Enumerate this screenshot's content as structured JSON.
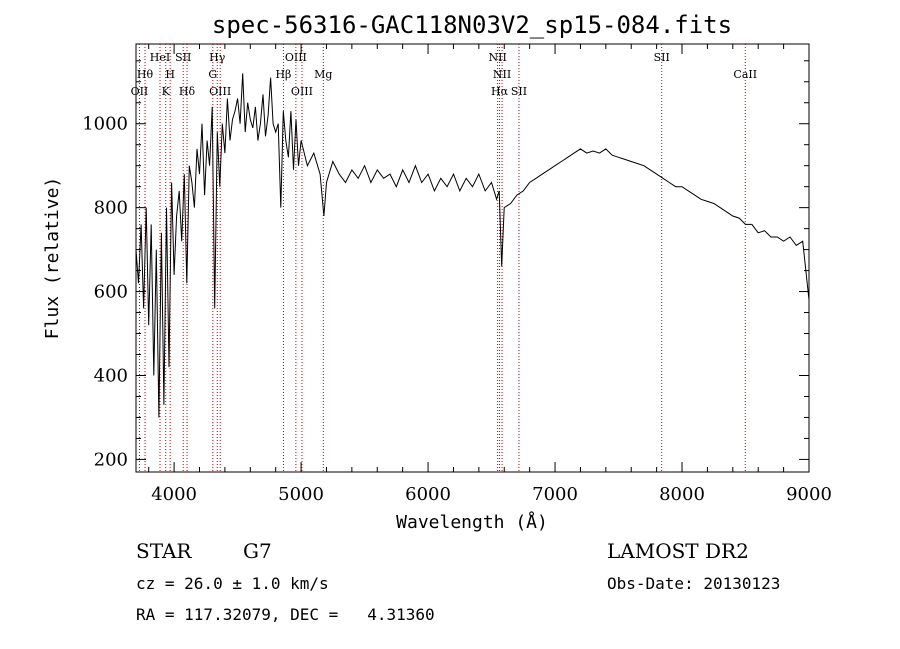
{
  "chart_data": {
    "type": "line",
    "title": "spec-56316-GAC118N03V2_sp15-084.fits",
    "xlabel": "Wavelength (Å)",
    "ylabel": "Flux (relative)",
    "xlim": [
      3700,
      9000
    ],
    "ylim": [
      170,
      1190
    ],
    "x_ticks": [
      4000,
      5000,
      6000,
      7000,
      8000,
      9000
    ],
    "x_tick_labels": [
      "4000",
      "5000",
      "6000",
      "7000",
      "8000",
      "9000"
    ],
    "y_ticks": [
      200,
      400,
      600,
      800,
      1000
    ],
    "y_tick_labels": [
      "200",
      "400",
      "600",
      "800",
      "1000"
    ],
    "series": [
      {
        "color": "#000000",
        "x": [
          3700,
          3720,
          3740,
          3760,
          3780,
          3800,
          3820,
          3840,
          3860,
          3880,
          3900,
          3920,
          3940,
          3960,
          3980,
          4000,
          4020,
          4040,
          4060,
          4080,
          4100,
          4120,
          4140,
          4160,
          4180,
          4200,
          4220,
          4240,
          4260,
          4280,
          4300,
          4320,
          4340,
          4360,
          4380,
          4400,
          4420,
          4440,
          4460,
          4480,
          4500,
          4520,
          4540,
          4560,
          4580,
          4600,
          4620,
          4640,
          4660,
          4680,
          4700,
          4720,
          4740,
          4760,
          4780,
          4800,
          4820,
          4840,
          4860,
          4880,
          4900,
          4920,
          4940,
          4960,
          4980,
          5000,
          5050,
          5100,
          5150,
          5180,
          5200,
          5250,
          5300,
          5350,
          5400,
          5450,
          5500,
          5550,
          5600,
          5650,
          5700,
          5750,
          5800,
          5850,
          5900,
          5950,
          6000,
          6050,
          6100,
          6150,
          6200,
          6250,
          6300,
          6350,
          6400,
          6450,
          6500,
          6540,
          6560,
          6580,
          6600,
          6650,
          6700,
          6750,
          6800,
          6850,
          6900,
          6950,
          7000,
          7050,
          7100,
          7150,
          7200,
          7250,
          7300,
          7350,
          7400,
          7450,
          7500,
          7550,
          7600,
          7650,
          7700,
          7750,
          7800,
          7850,
          7900,
          7950,
          8000,
          8050,
          8100,
          8150,
          8200,
          8250,
          8300,
          8350,
          8400,
          8450,
          8500,
          8550,
          8600,
          8650,
          8700,
          8750,
          8800,
          8850,
          8900,
          8950,
          9000
        ],
        "y": [
          700,
          620,
          760,
          560,
          800,
          520,
          760,
          400,
          700,
          300,
          740,
          330,
          800,
          420,
          860,
          640,
          780,
          840,
          720,
          880,
          620,
          900,
          860,
          800,
          940,
          880,
          1000,
          830,
          960,
          900,
          1040,
          560,
          980,
          850,
          1000,
          930,
          1060,
          960,
          1010,
          1030,
          1060,
          1000,
          1120,
          980,
          1050,
          1010,
          990,
          1040,
          960,
          1000,
          1070,
          970,
          1020,
          1110,
          1000,
          980,
          1000,
          800,
          1030,
          960,
          920,
          1030,
          890,
          1010,
          900,
          960,
          900,
          930,
          880,
          780,
          860,
          910,
          880,
          860,
          890,
          870,
          900,
          860,
          890,
          870,
          880,
          850,
          890,
          860,
          900,
          860,
          880,
          840,
          870,
          850,
          880,
          840,
          870,
          850,
          880,
          840,
          860,
          820,
          840,
          660,
          800,
          810,
          830,
          840,
          860,
          870,
          880,
          890,
          900,
          910,
          920,
          930,
          940,
          930,
          935,
          930,
          940,
          925,
          920,
          915,
          910,
          905,
          900,
          890,
          880,
          870,
          860,
          850,
          850,
          840,
          830,
          820,
          815,
          810,
          800,
          790,
          780,
          775,
          760,
          760,
          740,
          745,
          730,
          730,
          720,
          730,
          710,
          720,
          580
        ]
      }
    ],
    "spectral_lines": [
      {
        "label": "OII",
        "wavelength": 3727,
        "row": 3
      },
      {
        "label": "Hθ",
        "wavelength": 3771,
        "row": 2
      },
      {
        "label": "HeI",
        "wavelength": 3889,
        "row": 1
      },
      {
        "label": "K",
        "wavelength": 3934,
        "row": 3
      },
      {
        "label": "H",
        "wavelength": 3969,
        "row": 2
      },
      {
        "label": "SII",
        "wavelength": 4072,
        "row": 1
      },
      {
        "label": "Hδ",
        "wavelength": 4102,
        "row": 3
      },
      {
        "label": "Hγ",
        "wavelength": 4340,
        "row": 1
      },
      {
        "label": "G",
        "wavelength": 4305,
        "row": 2
      },
      {
        "label": "OIII",
        "wavelength": 4363,
        "row": 3
      },
      {
        "label": "Hβ",
        "wavelength": 4861,
        "row": 2
      },
      {
        "label": "OIII",
        "wavelength": 4959,
        "row": 1
      },
      {
        "label": "OIII",
        "wavelength": 5007,
        "row": 3
      },
      {
        "label": "Mg",
        "wavelength": 5175,
        "row": 2
      },
      {
        "label": "NII",
        "wavelength": 6548,
        "row": 1
      },
      {
        "label": "NII",
        "wavelength": 6583,
        "row": 2
      },
      {
        "label": "Hα",
        "wavelength": 6563,
        "row": 3
      },
      {
        "label": "SII",
        "wavelength": 6716,
        "row": 3
      },
      {
        "label": "SII",
        "wavelength": 7840,
        "row": 1
      },
      {
        "label": "CaII",
        "wavelength": 8498,
        "row": 2
      }
    ]
  },
  "info": {
    "obj_class": "STAR",
    "subclass": "G7",
    "survey": "LAMOST DR2",
    "redshift": "cz = 26.0 ± 1.0 km/s",
    "obs_date": "Obs-Date: 20130123",
    "coords": "RA = 117.32079, DEC =   4.31360"
  },
  "colors": {
    "spectrum": "#000000",
    "line_marker": "#cc0000"
  }
}
